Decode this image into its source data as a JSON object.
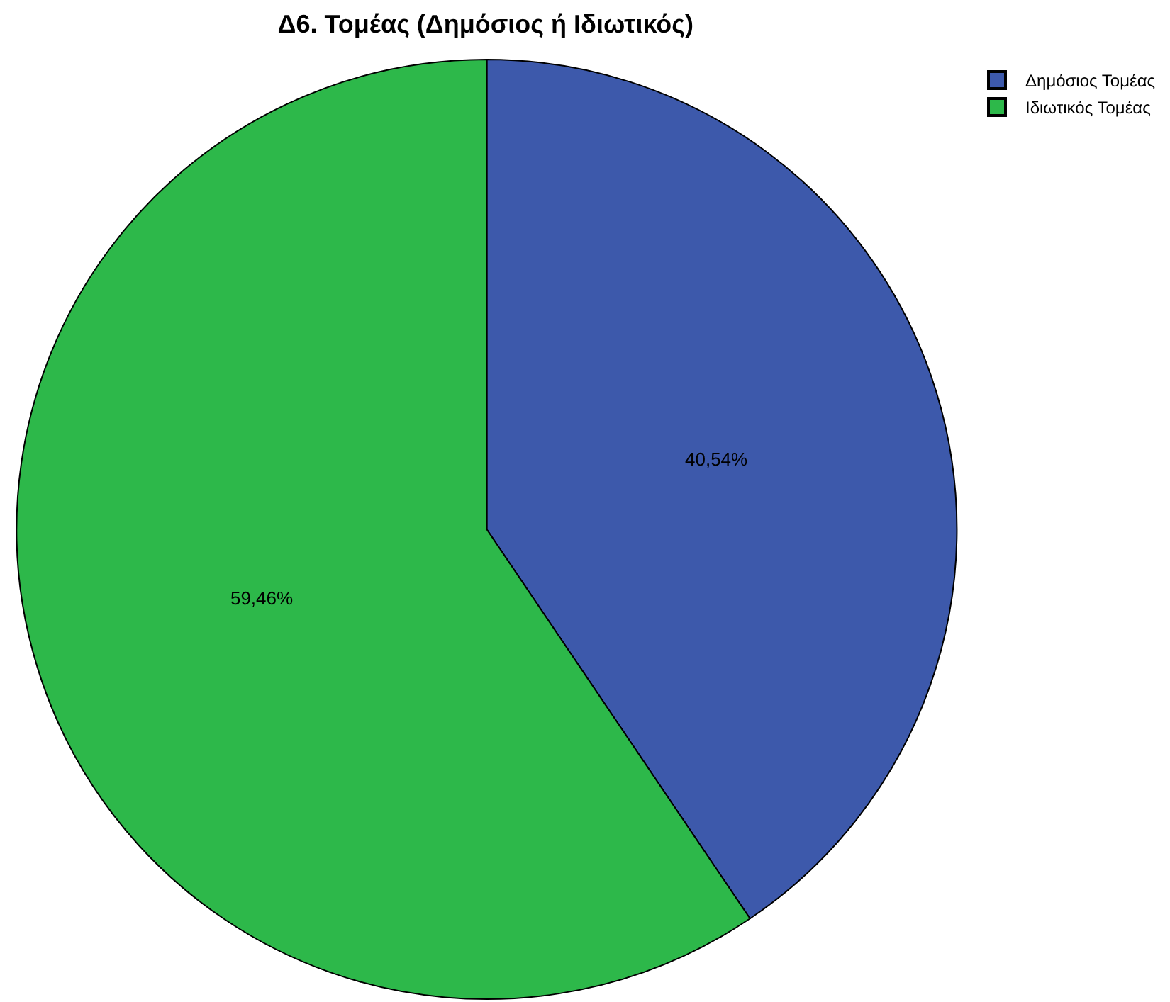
{
  "chart_data": {
    "type": "pie",
    "title": "Δ6. Τομέας (Δημόσιος ή Ιδιωτικός)",
    "categories": [
      "Δημόσιος Τομέας",
      "Ιδιωτικός Τομέας"
    ],
    "values": [
      40.54,
      59.46
    ],
    "value_labels": [
      "40,54%",
      "59,46%"
    ],
    "colors": [
      "#3d59ab",
      "#2db84a"
    ],
    "legend": "top right"
  }
}
